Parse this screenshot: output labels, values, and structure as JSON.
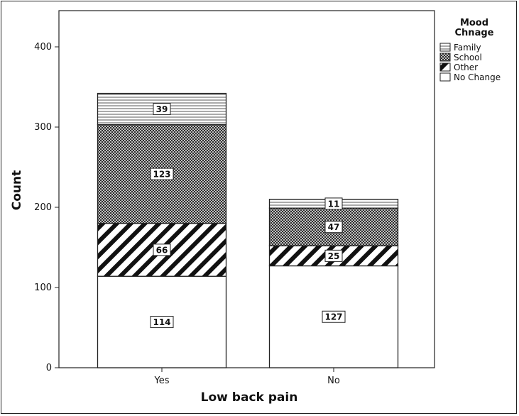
{
  "chart_data": {
    "type": "bar",
    "stacked": true,
    "xlabel": "Low back pain",
    "ylabel": "Count",
    "categories": [
      "Yes",
      "No"
    ],
    "ylim": [
      0,
      450
    ],
    "yticks": [
      0,
      100,
      200,
      300,
      400
    ],
    "legend": {
      "title": "Mood Chnage",
      "placement": "top-right"
    },
    "series": [
      {
        "name": "No Change",
        "values": [
          114,
          127
        ],
        "pattern": "white"
      },
      {
        "name": "Other",
        "values": [
          66,
          25
        ],
        "pattern": "diagonal-hatch"
      },
      {
        "name": "School",
        "values": [
          123,
          47
        ],
        "pattern": "crosshatch"
      },
      {
        "name": "Family",
        "values": [
          39,
          11
        ],
        "pattern": "horizontal-lines"
      }
    ],
    "legend_order": [
      "Family",
      "School",
      "Other",
      "No Change"
    ],
    "grid": false
  }
}
